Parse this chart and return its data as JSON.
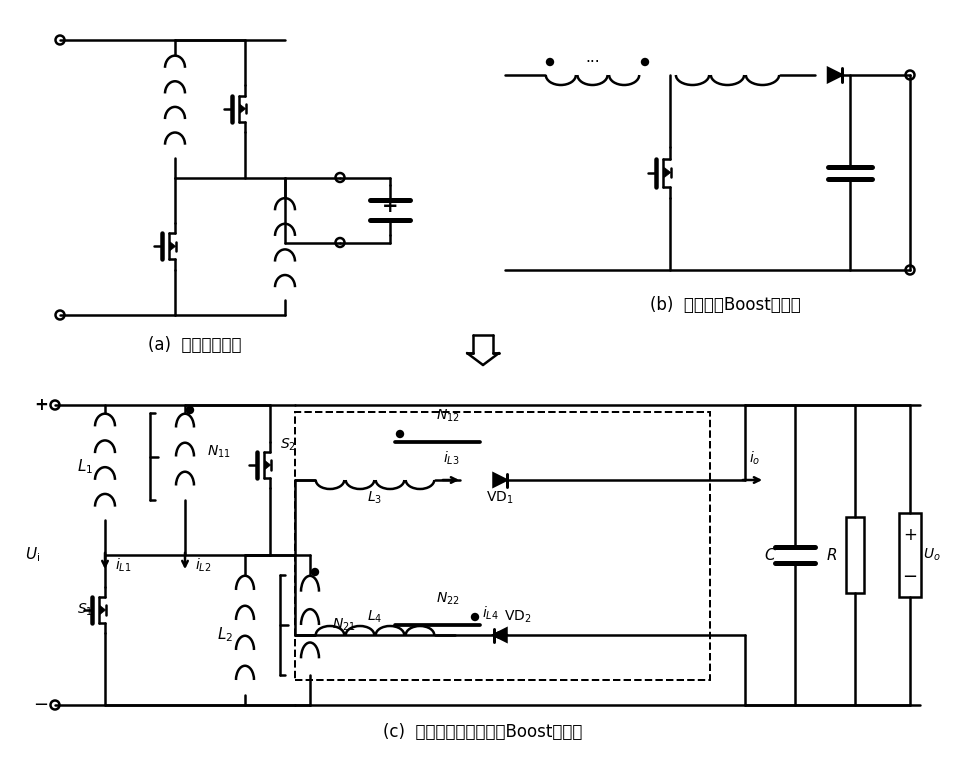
{
  "title_a": "(a)  有源开关电感",
  "title_b": "(b)  耦合电感Boost变换器",
  "title_c": "(c)  高增益耦合电感倍压Boost变换器",
  "bg_color": "#ffffff",
  "line_color": "#000000",
  "line_width": 1.8
}
